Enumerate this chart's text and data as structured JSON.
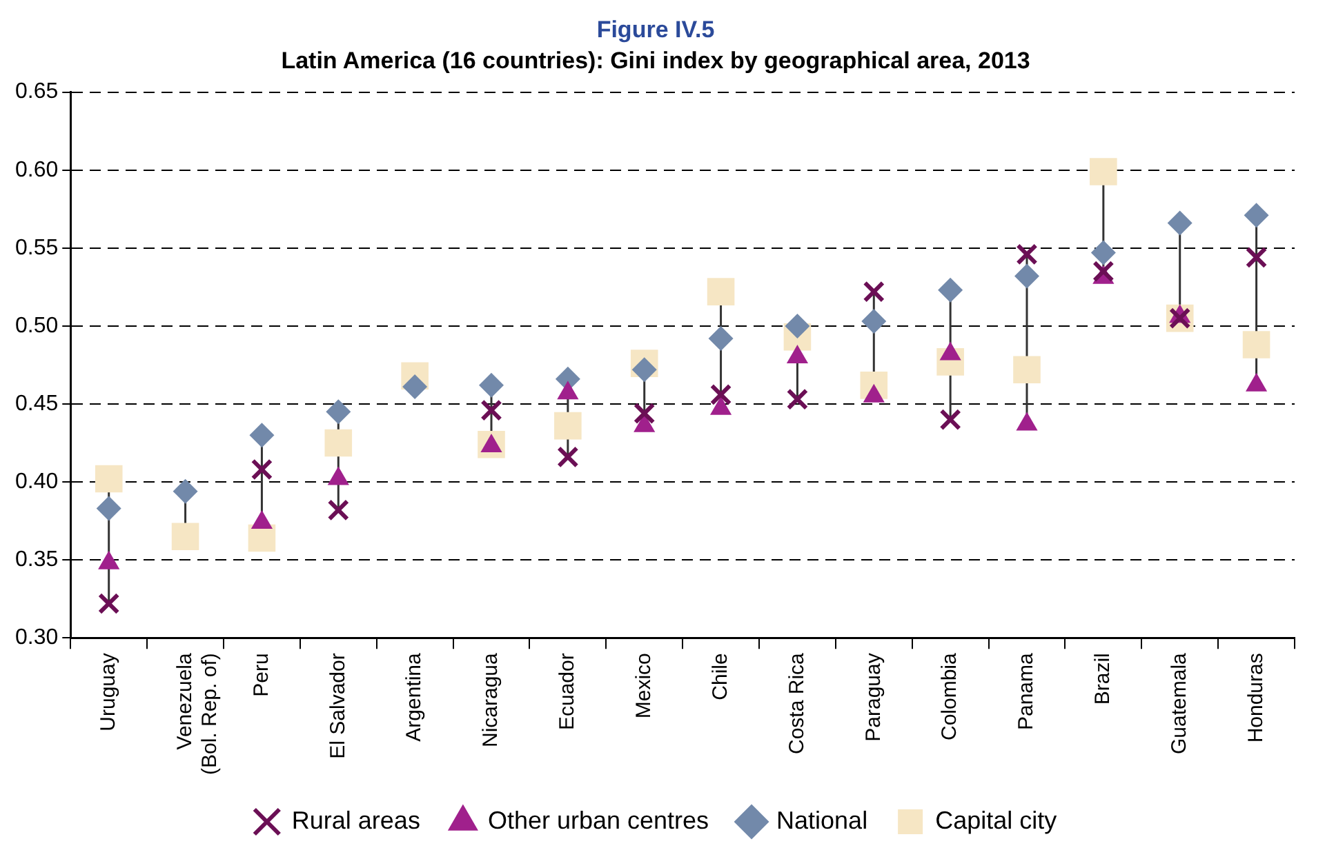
{
  "chart_data": {
    "type": "scatter",
    "title": "Figure IV.5",
    "subtitle": "Latin America (16 countries): Gini index by geographical area, 2013",
    "categories": [
      "Uruguay",
      "Venezuela\n(Bol. Rep. of)",
      "Peru",
      "El Salvador",
      "Argentina",
      "Nicaragua",
      "Ecuador",
      "Mexico",
      "Chile",
      "Costa Rica",
      "Paraguay",
      "Colombia",
      "Panama",
      "Brazil",
      "Guatemala",
      "Honduras"
    ],
    "series": [
      {
        "name": "Rural areas",
        "color": "#6b0f55",
        "marker": "cross",
        "values": [
          0.322,
          null,
          0.408,
          0.382,
          null,
          0.446,
          0.416,
          0.444,
          0.456,
          0.453,
          0.522,
          0.44,
          0.546,
          0.535,
          0.505,
          0.544
        ]
      },
      {
        "name": "Other urban centres",
        "color": "#a0208c",
        "marker": "triangle",
        "values": [
          0.348,
          null,
          0.374,
          0.402,
          null,
          0.423,
          0.457,
          0.436,
          0.447,
          0.48,
          0.455,
          0.482,
          0.437,
          0.531,
          0.506,
          0.462
        ]
      },
      {
        "name": "National",
        "color": "#7289aa",
        "marker": "diamond",
        "values": [
          0.383,
          0.394,
          0.43,
          0.445,
          0.461,
          0.462,
          0.466,
          0.472,
          0.492,
          0.5,
          0.503,
          0.523,
          0.532,
          0.547,
          0.566,
          0.571
        ]
      },
      {
        "name": "Capital city",
        "color": "#f6e6c4",
        "marker": "square",
        "values": [
          0.402,
          0.365,
          0.364,
          0.425,
          0.468,
          0.424,
          0.436,
          0.476,
          0.522,
          0.493,
          0.462,
          0.477,
          0.472,
          0.599,
          0.505,
          0.488
        ]
      }
    ],
    "ylim": [
      0.3,
      0.65
    ],
    "yticks": [
      {
        "value": 0.3,
        "label": "0.30"
      },
      {
        "value": 0.35,
        "label": "0.35"
      },
      {
        "value": 0.4,
        "label": "0.40"
      },
      {
        "value": 0.45,
        "label": "0.45"
      },
      {
        "value": 0.5,
        "label": "0.50"
      },
      {
        "value": 0.55,
        "label": "0.55"
      },
      {
        "value": 0.6,
        "label": "0.60"
      },
      {
        "value": 0.65,
        "label": "0.65"
      }
    ],
    "grid": "y",
    "legend": "bottom"
  }
}
